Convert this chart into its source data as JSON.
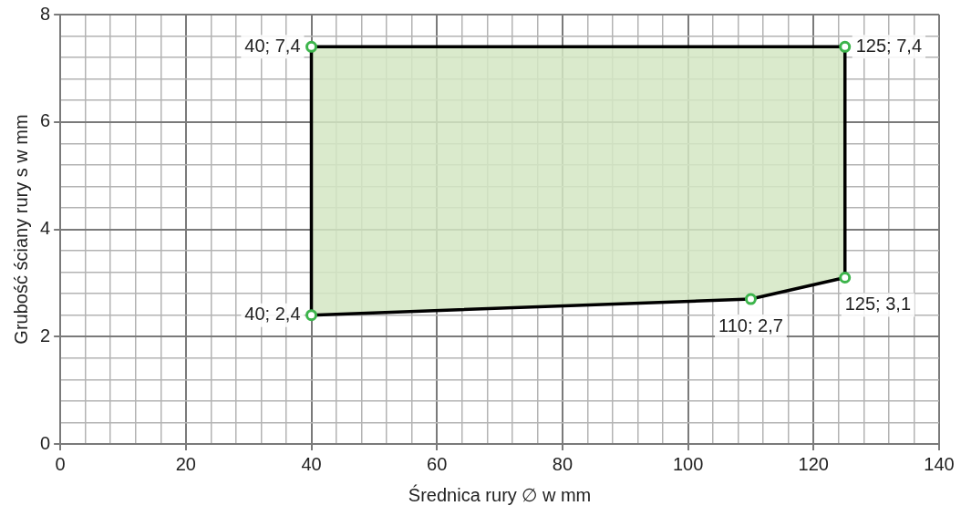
{
  "chart_data": {
    "type": "area",
    "xlabel": "Średnica rury ∅ w mm",
    "ylabel": "Grubość ściany rury s w mm",
    "series": [
      {
        "color": "#d4e6c3",
        "x": [
          40,
          110,
          125,
          125,
          40
        ],
        "values": [
          2.4,
          2.7,
          3.1,
          7.4,
          7.4
        ],
        "value_labels": [
          "40; 2,4",
          "110; 2,7",
          "125; 3,1",
          "125; 7,4",
          "40; 7,4"
        ]
      }
    ],
    "xlim": [
      0,
      140
    ],
    "xticks": [
      0,
      {
        "value": 4,
        "label": null
      },
      {
        "value": 8,
        "label": null
      },
      {
        "value": 12,
        "label": null
      },
      {
        "value": 16,
        "label": null
      },
      20,
      {
        "value": 24,
        "label": null
      },
      {
        "value": 28,
        "label": null
      },
      {
        "value": 32,
        "label": null
      },
      {
        "value": 36,
        "label": null
      },
      40,
      {
        "value": 44,
        "label": null
      },
      {
        "value": 48,
        "label": null
      },
      {
        "value": 52,
        "label": null
      },
      {
        "value": 56,
        "label": null
      },
      60,
      {
        "value": 64,
        "label": null
      },
      {
        "value": 68,
        "label": null
      },
      {
        "value": 72,
        "label": null
      },
      {
        "value": 76,
        "label": null
      },
      80,
      {
        "value": 84,
        "label": null
      },
      {
        "value": 88,
        "label": null
      },
      {
        "value": 92,
        "label": null
      },
      {
        "value": 96,
        "label": null
      },
      100,
      {
        "value": 104,
        "label": null
      },
      {
        "value": 108,
        "label": null
      },
      {
        "value": 112,
        "label": null
      },
      {
        "value": 116,
        "label": null
      },
      120,
      {
        "value": 124,
        "label": null
      },
      {
        "value": 128,
        "label": null
      },
      {
        "value": 132,
        "label": null
      },
      {
        "value": 136,
        "label": null
      },
      140
    ],
    "ylim": [
      0,
      8
    ],
    "yticks": [
      0,
      {
        "value": 0.4,
        "label": null
      },
      {
        "value": 0.8,
        "label": null
      },
      {
        "value": 1.2,
        "label": null
      },
      {
        "value": 1.6,
        "label": null
      },
      2,
      {
        "value": 2.4,
        "label": null
      },
      {
        "value": 2.8,
        "label": null
      },
      {
        "value": 3.2,
        "label": null
      },
      {
        "value": 3.6,
        "label": null
      },
      4,
      {
        "value": 4.4,
        "label": null
      },
      {
        "value": 4.8,
        "label": null
      },
      {
        "value": 5.2,
        "label": null
      },
      {
        "value": 5.6,
        "label": null
      },
      6,
      {
        "value": 6.4,
        "label": null
      },
      {
        "value": 6.8,
        "label": null
      },
      {
        "value": 7.2,
        "label": null
      },
      {
        "value": 7.6,
        "label": null
      },
      8
    ],
    "grid": true,
    "marker": "circle",
    "line_style": "solid",
    "legend": false
  }
}
